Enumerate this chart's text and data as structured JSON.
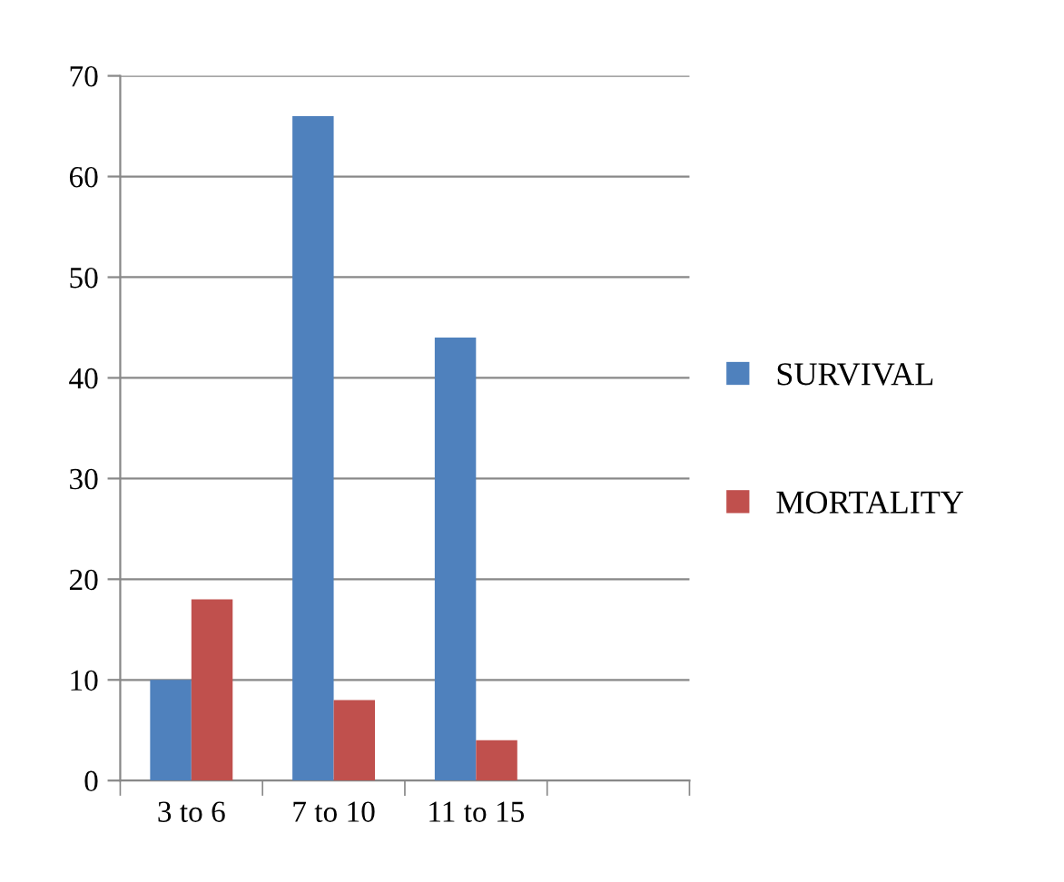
{
  "chart_data": {
    "type": "bar",
    "categories": [
      "3 to 6",
      "7 to 10",
      "11 to 15",
      null
    ],
    "series": [
      {
        "name": "SURVIVAL",
        "color": "#4f81bd",
        "values": [
          10,
          66,
          44,
          null
        ]
      },
      {
        "name": "MORTALITY",
        "color": "#c0504d",
        "values": [
          18,
          8,
          4,
          null
        ]
      }
    ],
    "ylim": [
      0,
      70
    ],
    "yticks": [
      0,
      10,
      20,
      30,
      40,
      50,
      60,
      70
    ],
    "grid": "y",
    "legend": "right"
  }
}
